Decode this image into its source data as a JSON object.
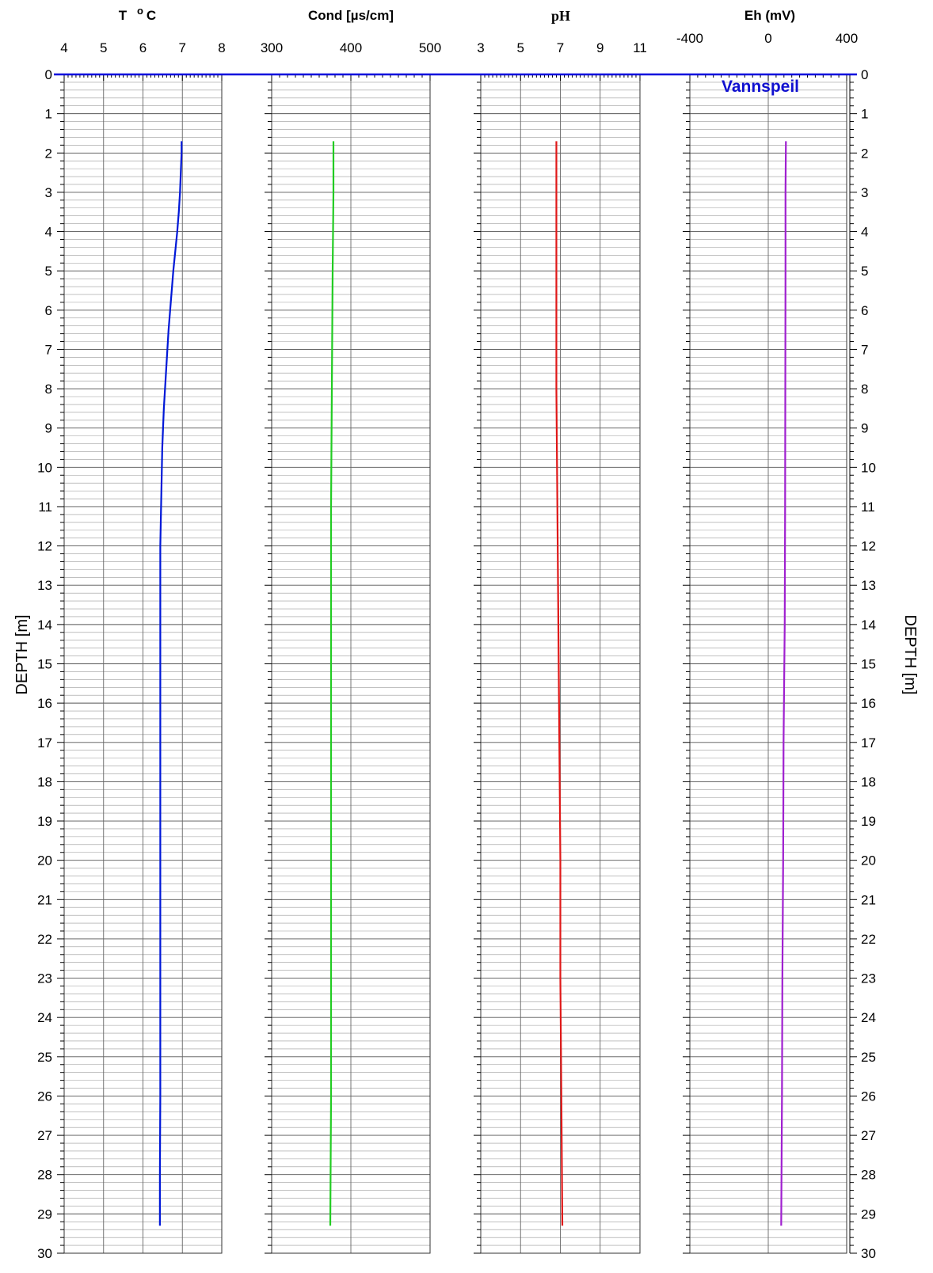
{
  "chart_data": {
    "type": "line",
    "depth_axis": {
      "label": "DEPTH [m]",
      "range": [
        0,
        30
      ],
      "ticks": [
        0,
        1,
        2,
        3,
        4,
        5,
        6,
        7,
        8,
        9,
        10,
        11,
        12,
        13,
        14,
        15,
        16,
        17,
        18,
        19,
        20,
        21,
        22,
        23,
        24,
        25,
        26,
        27,
        28,
        29,
        30
      ],
      "inverted": true
    },
    "water_level": {
      "label": "Vannspeil",
      "depth": 0,
      "color": "#0000dd"
    },
    "panels": [
      {
        "title": "T",
        "title_sup": "o",
        "title_suffix": "C",
        "xlim": [
          4,
          8
        ],
        "xticks": [
          "4",
          "5",
          "6",
          "7",
          "8"
        ],
        "color": "#0018d8",
        "series": {
          "depth": [
            1.7,
            2.0,
            2.5,
            3.0,
            3.5,
            4.0,
            4.5,
            5.0,
            5.5,
            6.0,
            6.5,
            7.0,
            7.5,
            8.0,
            8.5,
            9.0,
            9.5,
            10.0,
            10.5,
            11.0,
            11.5,
            12,
            14,
            16,
            18,
            20,
            22,
            24,
            26,
            28,
            29.3
          ],
          "values": [
            6.98,
            6.98,
            6.96,
            6.94,
            6.91,
            6.87,
            6.82,
            6.77,
            6.73,
            6.69,
            6.65,
            6.62,
            6.59,
            6.56,
            6.53,
            6.51,
            6.49,
            6.48,
            6.47,
            6.46,
            6.45,
            6.44,
            6.44,
            6.44,
            6.44,
            6.44,
            6.44,
            6.44,
            6.44,
            6.43,
            6.43
          ]
        }
      },
      {
        "title": "Cond [µs/cm]",
        "xlim": [
          300,
          500
        ],
        "xticks": [
          "300",
          "400",
          "500"
        ],
        "color": "#22cc22",
        "series": {
          "depth": [
            1.7,
            3,
            5,
            8,
            11,
            14,
            17,
            20,
            23,
            26,
            29.3
          ],
          "values": [
            378,
            378,
            377,
            376,
            375,
            375,
            375,
            375,
            375,
            375,
            374
          ]
        }
      },
      {
        "title": "pH",
        "xlim": [
          3,
          11
        ],
        "xticks": [
          "3",
          "5",
          "7",
          "9",
          "11"
        ],
        "color": "#e01818",
        "series": {
          "depth": [
            1.7,
            3,
            5,
            8,
            11,
            14,
            17,
            20,
            23,
            26,
            29.3
          ],
          "values": [
            6.8,
            6.8,
            6.8,
            6.8,
            6.85,
            6.9,
            6.95,
            7.0,
            7.0,
            7.05,
            7.1
          ]
        }
      },
      {
        "title": "Eh (mV)",
        "xlim": [
          -400,
          400
        ],
        "xticks": [
          "-400",
          "0",
          "400"
        ],
        "color": "#a020d0",
        "series": {
          "depth": [
            1.7,
            3,
            5,
            8,
            11,
            14,
            16,
            17,
            20,
            23,
            26,
            29.3
          ],
          "values": [
            90,
            88,
            88,
            87,
            86,
            84,
            80,
            78,
            76,
            72,
            70,
            66
          ]
        }
      }
    ]
  }
}
